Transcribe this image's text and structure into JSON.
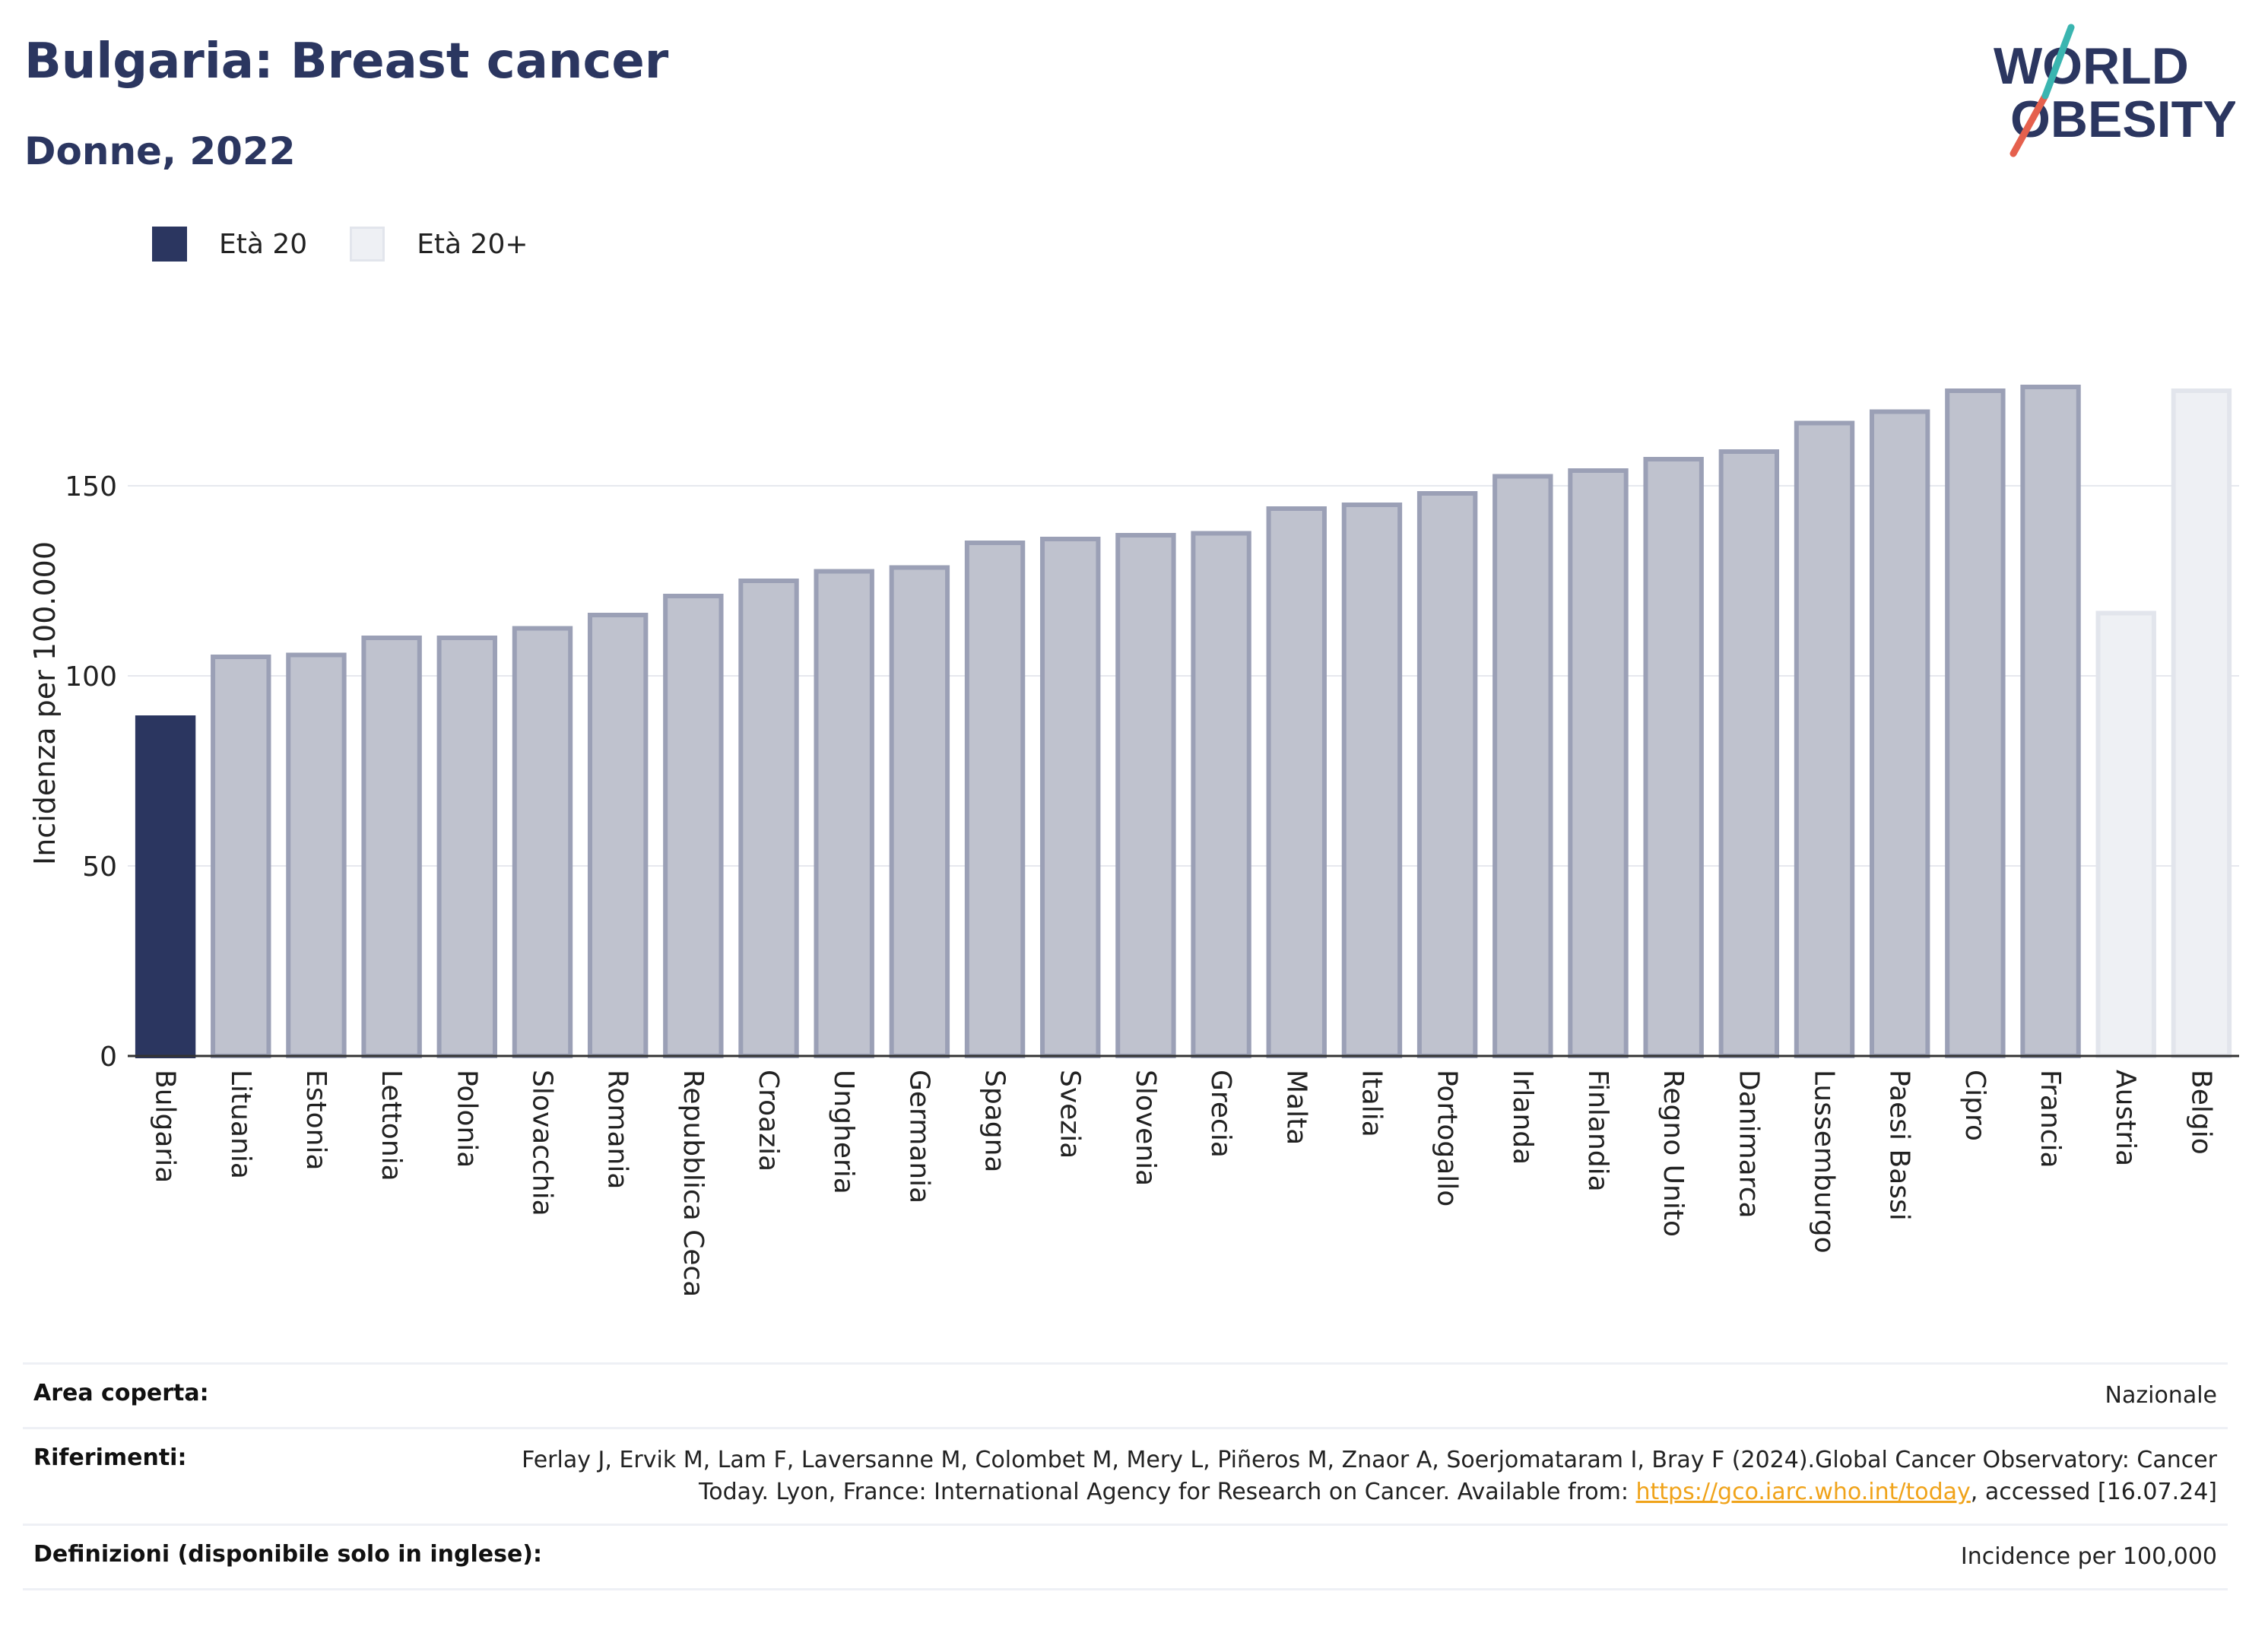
{
  "header": {
    "title": "Bulgaria: Breast cancer",
    "subtitle": "Donne, 2022"
  },
  "logo": {
    "line1": "WORLD",
    "line2": "OBESITY"
  },
  "colors": {
    "highlight": "#2b3660",
    "highlight_stroke": "#2b3660",
    "others": "#bfc2ce",
    "others_stroke": "#9ba0b6",
    "light": "#eef0f4",
    "light_stroke": "#e2e5ec",
    "title": "#2b3660",
    "grid": "#e6e8ee",
    "logo_slash_red": "#e5604d",
    "logo_slash_teal": "#3ab5b0"
  },
  "chart_data": {
    "type": "bar",
    "ylabel": "Incidenza per 100.000",
    "xlabel": "",
    "ylim": [
      0,
      190
    ],
    "yticks": [
      0,
      50,
      100,
      150
    ],
    "grid": true,
    "legend": [
      {
        "name": "Età 20",
        "color": "#2b3660"
      },
      {
        "name": "Età 20+",
        "color": "#eef0f4"
      }
    ],
    "categories": [
      "Bulgaria",
      "Lituania",
      "Estonia",
      "Lettonia",
      "Polonia",
      "Slovacchia",
      "Romania",
      "Repubblica Ceca",
      "Croazia",
      "Ungheria",
      "Germania",
      "Spagna",
      "Svezia",
      "Slovenia",
      "Grecia",
      "Malta",
      "Italia",
      "Portogallo",
      "Irlanda",
      "Finlandia",
      "Regno Unito",
      "Danimarca",
      "Lussemburgo",
      "Paesi Bassi",
      "Cipro",
      "Francia",
      "Austria",
      "Belgio"
    ],
    "values": [
      89,
      105,
      105.5,
      110,
      110,
      112.5,
      116,
      121,
      125,
      127.5,
      128.5,
      135,
      136,
      137,
      137.5,
      144,
      145,
      148,
      152.5,
      154,
      157,
      159,
      166.5,
      169.5,
      175,
      176,
      116.5,
      175
    ],
    "groups": [
      "highlight",
      "other",
      "other",
      "other",
      "other",
      "other",
      "other",
      "other",
      "other",
      "other",
      "other",
      "other",
      "other",
      "other",
      "other",
      "other",
      "other",
      "other",
      "other",
      "other",
      "other",
      "other",
      "other",
      "other",
      "other",
      "other",
      "light",
      "light"
    ]
  },
  "info": {
    "area_label": "Area coperta:",
    "area_value": "Nazionale",
    "refs_label": "Riferimenti:",
    "refs_text": "Ferlay J, Ervik M, Lam F, Laversanne M, Colombet M, Mery L, Piñeros M, Znaor A, Soerjomataram I, Bray F (2024).Global Cancer Observatory: Cancer Today. Lyon, France: International Agency for Research on Cancer. Available from: ",
    "refs_link": "https://gco.iarc.who.int/today",
    "refs_tail": ", accessed [16.07.24]",
    "defs_label": "Definizioni (disponibile solo in inglese):",
    "defs_value": "Incidence per 100,000"
  }
}
